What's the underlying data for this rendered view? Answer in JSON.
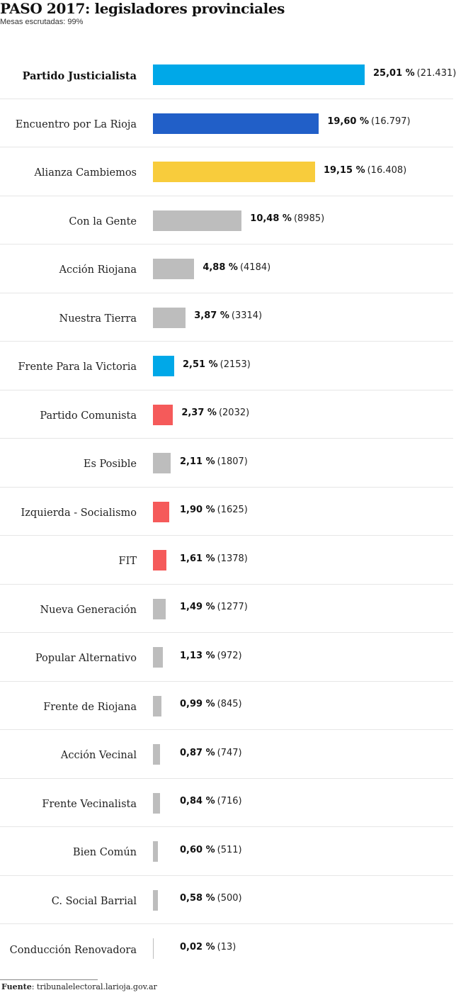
{
  "title": "PASO 2017: legisladores provinciales",
  "subtitle": "Mesas escrutadas: 99%",
  "source": {
    "label": "Fuente",
    "text": ": tribunalelectoral.larioja.gov.ar"
  },
  "colors": {
    "pj": "#00a8e8",
    "encuentro": "#215fc8",
    "cambiemos": "#f8cc3c",
    "other": "#bdbdbd",
    "left": "#f55a5a"
  },
  "chart_data": {
    "type": "bar",
    "orientation": "horizontal",
    "title": "PASO 2017: legisladores provinciales",
    "subtitle": "Mesas escrutadas: 99%",
    "categories": [
      "Partido Justicialista",
      "Encuentro por La Rioja",
      "Alianza Cambiemos",
      "Con la Gente",
      "Acción Riojana",
      "Nuestra Tierra",
      "Frente Para la Victoria",
      "Partido Comunista",
      "Es Posible",
      "Izquierda - Socialismo",
      "FIT",
      "Nueva Generación",
      "Popular Alternativo",
      "Frente de Riojana",
      "Acción Vecinal",
      "Frente Vecinalista",
      "Bien Común",
      "C. Social Barrial",
      "Conducción Renovadora"
    ],
    "values": [
      25.01,
      19.6,
      19.15,
      10.48,
      4.88,
      3.87,
      2.51,
      2.37,
      2.11,
      1.9,
      1.61,
      1.49,
      1.13,
      0.99,
      0.87,
      0.84,
      0.6,
      0.58,
      0.02
    ],
    "pct_labels": [
      "25,01 %",
      "19,60 %",
      "19,15 %",
      "10,48 %",
      "4,88 %",
      "3,87 %",
      "2,51 %",
      "2,37 %",
      "2,11 %",
      "1,90 %",
      "1,61 %",
      "1,49 %",
      "1,13 %",
      "0,99 %",
      "0,87 %",
      "0,84 %",
      "0,60 %",
      "0,58 %",
      "0,02 %"
    ],
    "votes": [
      21431,
      16797,
      16408,
      8985,
      4184,
      3314,
      2153,
      2032,
      1807,
      1625,
      1378,
      1277,
      972,
      845,
      747,
      716,
      511,
      500,
      13
    ],
    "vote_labels": [
      "(21.431)",
      "(16.797)",
      "(16.408)",
      "(8985)",
      "(4184)",
      "(3314)",
      "(2153)",
      "(2032)",
      "(1807)",
      "(1625)",
      "(1378)",
      "(1277)",
      "(972)",
      "(845)",
      "(747)",
      "(716)",
      "(511)",
      "(500)",
      "(13)"
    ],
    "bar_colors": [
      "#00a8e8",
      "#215fc8",
      "#f8cc3c",
      "#bdbdbd",
      "#bdbdbd",
      "#bdbdbd",
      "#00a8e8",
      "#f55a5a",
      "#bdbdbd",
      "#f55a5a",
      "#f55a5a",
      "#bdbdbd",
      "#bdbdbd",
      "#bdbdbd",
      "#bdbdbd",
      "#bdbdbd",
      "#bdbdbd",
      "#bdbdbd",
      "#bdbdbd"
    ],
    "highlight": "Partido Justicialista",
    "xlim": [
      0,
      25.01
    ],
    "grid": false,
    "legend": "none"
  }
}
